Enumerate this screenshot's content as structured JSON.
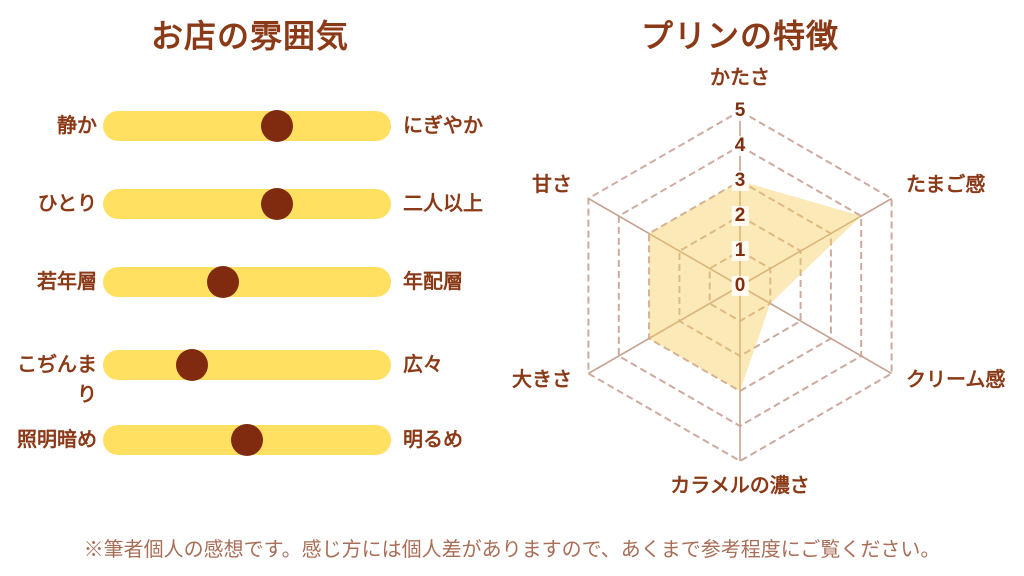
{
  "colors": {
    "heading": "#8B3A18",
    "bar_fill": "#FFE061",
    "dot_fill": "#802B10",
    "grid_line": "#CDAA9E",
    "spoke_line": "#C5A291",
    "radar_fill": "rgba(246,206,95,0.45)",
    "tick_text": "#7D2F10",
    "disclaimer_text": "#A96E57",
    "page_bg": "#FFFFFF"
  },
  "disclaimer": "※筆者個人の感想です。感じ方には個人差がありますので、あくまで参考程度にご覧ください。",
  "chart_data": [
    {
      "type": "slider-scale",
      "title": "お店の雰囲気",
      "scale_note": "dot position as percent from left end of track (0 = left label, 100 = right label)",
      "rows": [
        {
          "left": "静か",
          "right": "にぎやか",
          "percent": 60.5
        },
        {
          "left": "ひとり",
          "right": "二人以上",
          "percent": 60.5
        },
        {
          "left": "若年層",
          "right": "年配層",
          "percent": 41.5
        },
        {
          "left": "こぢんまり",
          "right": "広々",
          "percent": 31
        },
        {
          "left": "照明暗め",
          "right": "明るめ",
          "percent": 50
        }
      ]
    },
    {
      "type": "radar",
      "title": "プリンの特徴",
      "axes": [
        "かたさ",
        "たまご感",
        "クリーム感",
        "カラメルの濃さ",
        "大きさ",
        "甘さ"
      ],
      "values": [
        3,
        4,
        1,
        3,
        3,
        3
      ],
      "scale": {
        "min": 0,
        "max": 5,
        "ticks": [
          5,
          4,
          3,
          2,
          1,
          0
        ]
      },
      "grid": "dashed-hexagon-rings",
      "legend": "none"
    }
  ]
}
